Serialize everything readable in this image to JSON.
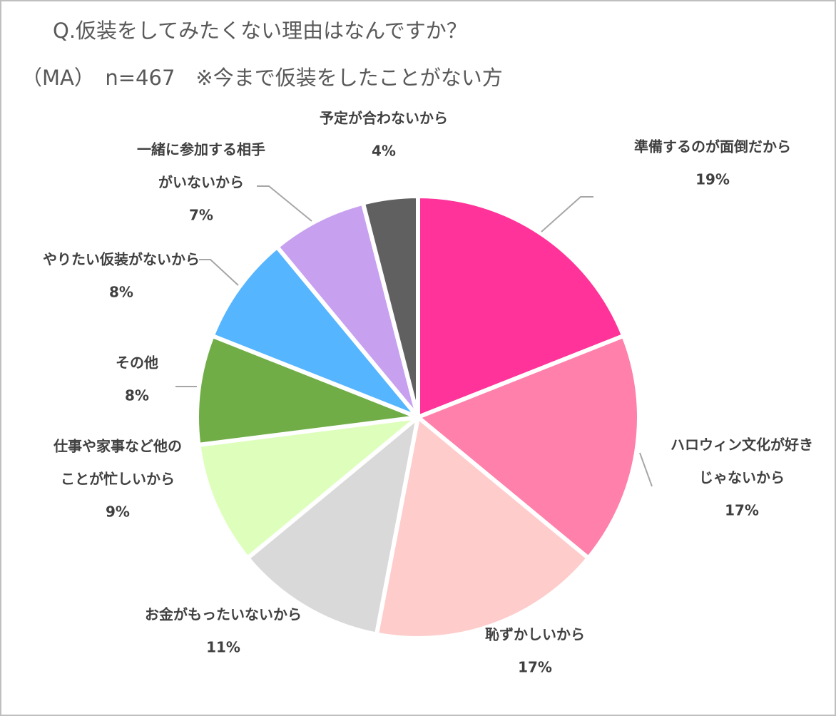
{
  "chart_data": {
    "type": "pie",
    "title": "Q.仮装をしてみたくない理由はなんですか？",
    "subtitle": "（MA）　n=467　※今まで仮装をしたことがない方",
    "slices": [
      {
        "label": [
          "準備するのが面倒だから"
        ],
        "value_label": "19%",
        "value": 19,
        "color": "#ff3399"
      },
      {
        "label": [
          "ハロウィン文化が好き",
          "じゃないから"
        ],
        "value_label": "17%",
        "value": 17,
        "color": "#ff80aa"
      },
      {
        "label": [
          "恥ずかしいから"
        ],
        "value_label": "17%",
        "value": 17,
        "color": "#ffcccc"
      },
      {
        "label": [
          "お金がもったいないから"
        ],
        "value_label": "11%",
        "value": 11,
        "color": "#d9d9d9"
      },
      {
        "label": [
          "仕事や家事など他の",
          "ことが忙しいから"
        ],
        "value_label": "9%",
        "value": 9,
        "color": "#ddffbb"
      },
      {
        "label": [
          "その他"
        ],
        "value_label": "8%",
        "value": 8,
        "color": "#70ad47"
      },
      {
        "label": [
          "やりたい仮装がないから"
        ],
        "value_label": "8%",
        "value": 8,
        "color": "#55b5ff"
      },
      {
        "label": [
          "一緒に参加する相手",
          "がいないから"
        ],
        "value_label": "7%",
        "value": 7,
        "color": "#c8a0f0"
      },
      {
        "label": [
          "予定が合わないから"
        ],
        "value_label": "4%",
        "value": 4,
        "color": "#606060"
      }
    ]
  }
}
